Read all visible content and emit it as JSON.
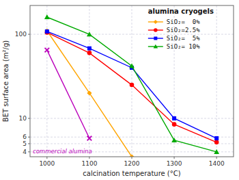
{
  "chart_data": {
    "type": "line",
    "title": "alumina cryogels",
    "x_label": "calcination temperature (°C)",
    "y_label": "BET surface area (m²/g)",
    "log": "y",
    "grid": true,
    "legend": "upper right",
    "xlim": [
      960,
      1440
    ],
    "ylim": [
      3.5,
      220
    ],
    "xticks": [
      1000,
      1100,
      1200,
      1300,
      1400
    ],
    "yticks": [
      4,
      5,
      6,
      10,
      100
    ],
    "annotation": "commercial alumina",
    "series": [
      {
        "color": "#BB00BB",
        "marker": "x",
        "line_style": "solid",
        "x": [
          1000,
          1100
        ],
        "values": [
          65,
          5.8
        ]
      },
      {
        "name": "SiO₂=  0%",
        "color": "#FFA500",
        "marker": "diamond",
        "line_style": "solid",
        "x": [
          1000,
          1100,
          1200
        ],
        "values": [
          110,
          20,
          3.5
        ]
      },
      {
        "name": "SiO₂=2.5%",
        "color": "#FF0000",
        "marker": "circle",
        "line_style": "solid",
        "x": [
          1000,
          1100,
          1200,
          1300,
          1400
        ],
        "values": [
          105,
          60,
          25,
          8.5,
          5.2
        ]
      },
      {
        "name": "SiO₂=  5%",
        "color": "#0000FF",
        "marker": "square",
        "line_style": "solid",
        "x": [
          1000,
          1100,
          1200,
          1300,
          1400
        ],
        "values": [
          108,
          68,
          40,
          10,
          5.8
        ]
      },
      {
        "name": "SiO₂= 10%",
        "color": "#00AA00",
        "marker": "triangle",
        "line_style": "solid",
        "x": [
          1000,
          1100,
          1200,
          1300,
          1400
        ],
        "values": [
          160,
          100,
          42,
          5.5,
          4.0
        ]
      }
    ]
  }
}
